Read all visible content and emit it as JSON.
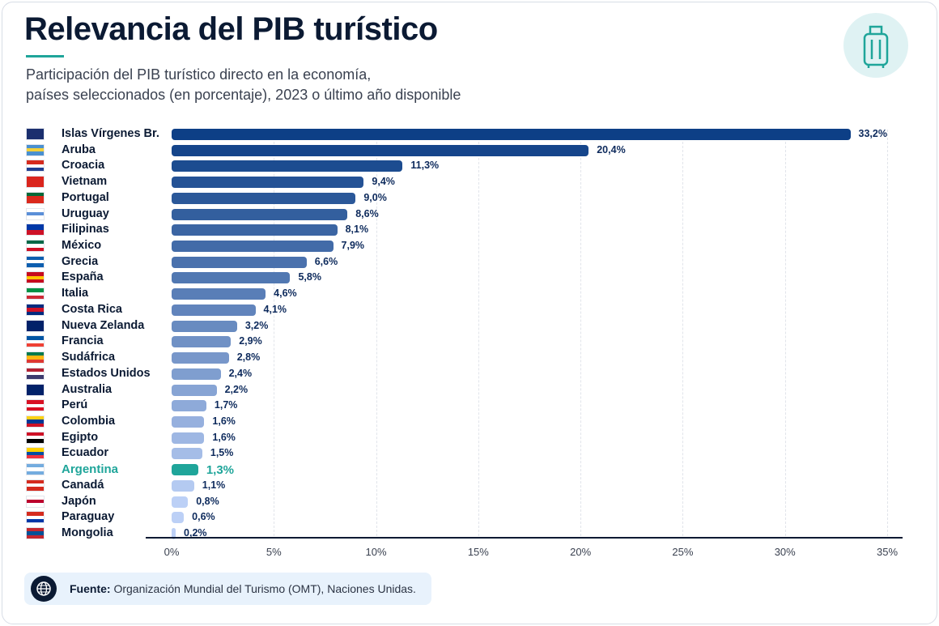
{
  "title": "Relevancia del PIB turístico",
  "subtitle_line1": "Participación del PIB turístico directo en la economía,",
  "subtitle_line2": "países seleccionados (en porcentaje), 2023 o último año disponible",
  "header_icon": "suitcase-icon",
  "footer": {
    "icon": "globe-icon",
    "label": "Fuente:",
    "text": " Organización Mundial del Turismo (OMT), Naciones Unidas."
  },
  "colors": {
    "dark": "#0d3f86",
    "light": "#bcd0f6",
    "highlight": "#1fa59a"
  },
  "chart_data": {
    "type": "bar",
    "orientation": "horizontal",
    "xlim": [
      0,
      35
    ],
    "grid": true,
    "tick_labels": [
      "0%",
      "5%",
      "10%",
      "15%",
      "20%",
      "25%",
      "30%",
      "35%"
    ],
    "ticks": [
      0,
      5,
      10,
      15,
      20,
      25,
      30,
      35
    ],
    "highlight": "Argentina",
    "categories": [
      "Islas Vírgenes Br.",
      "Aruba",
      "Croacia",
      "Vietnam",
      "Portugal",
      "Uruguay",
      "Filipinas",
      "México",
      "Grecia",
      "España",
      "Italia",
      "Costa Rica",
      "Nueva Zelanda",
      "Francia",
      "Sudáfrica",
      "Estados Unidos",
      "Australia",
      "Perú",
      "Colombia",
      "Egipto",
      "Ecuador",
      "Argentina",
      "Canadá",
      "Japón",
      "Paraguay",
      "Mongolia"
    ],
    "values": [
      33.2,
      20.4,
      11.3,
      9.4,
      9.0,
      8.6,
      8.1,
      7.9,
      6.6,
      5.8,
      4.6,
      4.1,
      3.2,
      2.9,
      2.8,
      2.4,
      2.2,
      1.7,
      1.6,
      1.6,
      1.5,
      1.3,
      1.1,
      0.8,
      0.6,
      0.2
    ],
    "value_labels": [
      "33,2%",
      "20,4%",
      "11,3%",
      "9,4%",
      "9,0%",
      "8,6%",
      "8,1%",
      "7,9%",
      "6,6%",
      "5,8%",
      "4,6%",
      "4,1%",
      "3,2%",
      "2,9%",
      "2,8%",
      "2,4%",
      "2,2%",
      "1,7%",
      "1,6%",
      "1,6%",
      "1,5%",
      "1,3%",
      "1,1%",
      "0,8%",
      "0,6%",
      "0,2%"
    ],
    "flag_colors": [
      [
        "#1b2f6e",
        "#1b2f6e"
      ],
      [
        "#4a90d0",
        "#f3d03a",
        "#4a90d0"
      ],
      [
        "#d52b1e",
        "#ffffff",
        "#1f3f91"
      ],
      [
        "#da251d",
        "#da251d"
      ],
      [
        "#046a38",
        "#da291c",
        "#da291c"
      ],
      [
        "#ffffff",
        "#5b8fd8",
        "#ffffff"
      ],
      [
        "#0038a8",
        "#ce1126"
      ],
      [
        "#006847",
        "#ffffff",
        "#ce1126"
      ],
      [
        "#0d5eaf",
        "#ffffff",
        "#0d5eaf"
      ],
      [
        "#c60b1e",
        "#ffc400",
        "#c60b1e"
      ],
      [
        "#009246",
        "#ffffff",
        "#ce2b37"
      ],
      [
        "#002b7f",
        "#ce1126",
        "#002b7f"
      ],
      [
        "#012169",
        "#012169"
      ],
      [
        "#0055a4",
        "#ffffff",
        "#ef4135"
      ],
      [
        "#007a4d",
        "#ffb612",
        "#de3831"
      ],
      [
        "#b22234",
        "#ffffff",
        "#3c3b6e"
      ],
      [
        "#012169",
        "#012169"
      ],
      [
        "#d91023",
        "#ffffff",
        "#d91023"
      ],
      [
        "#fcd116",
        "#003893",
        "#ce1126"
      ],
      [
        "#ce1126",
        "#ffffff",
        "#000000"
      ],
      [
        "#ffd100",
        "#034ea2",
        "#ef3340"
      ],
      [
        "#74acdf",
        "#ffffff",
        "#74acdf"
      ],
      [
        "#d52b1e",
        "#ffffff",
        "#d52b1e"
      ],
      [
        "#ffffff",
        "#bc002d",
        "#ffffff"
      ],
      [
        "#d52b1e",
        "#ffffff",
        "#0038a8"
      ],
      [
        "#c4272f",
        "#015197",
        "#c4272f"
      ]
    ]
  }
}
